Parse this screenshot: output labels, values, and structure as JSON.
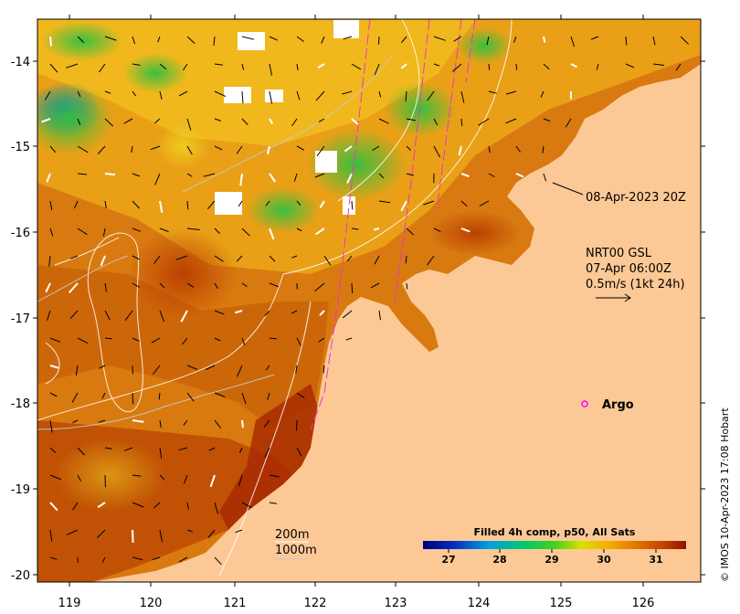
{
  "map": {
    "x_ticks": [
      "119",
      "120",
      "121",
      "122",
      "123",
      "124",
      "125",
      "126"
    ],
    "y_ticks": [
      "-14",
      "-15",
      "-16",
      "-17",
      "-18",
      "-19",
      "-20"
    ],
    "pass_label": "08-Apr-2023 20Z",
    "current": {
      "line1": "NRT00 GSL",
      "line2": "07-Apr 06:00Z",
      "line3": "0.5m/s (1kt 24h)"
    },
    "argo_label": "Argo",
    "contours": {
      "label_200": "200m",
      "label_1000": "1000m"
    },
    "credit": "© IMOS 10-Apr-2023 17:08 Hobart"
  },
  "colorbar": {
    "title": "Filled 4h comp, p50, All Sats",
    "ticks": [
      "27",
      "28",
      "29",
      "30",
      "31"
    ]
  },
  "colors": {
    "land": "#fcc996",
    "argo": "#ff00ff",
    "track": "#ee33cc"
  }
}
